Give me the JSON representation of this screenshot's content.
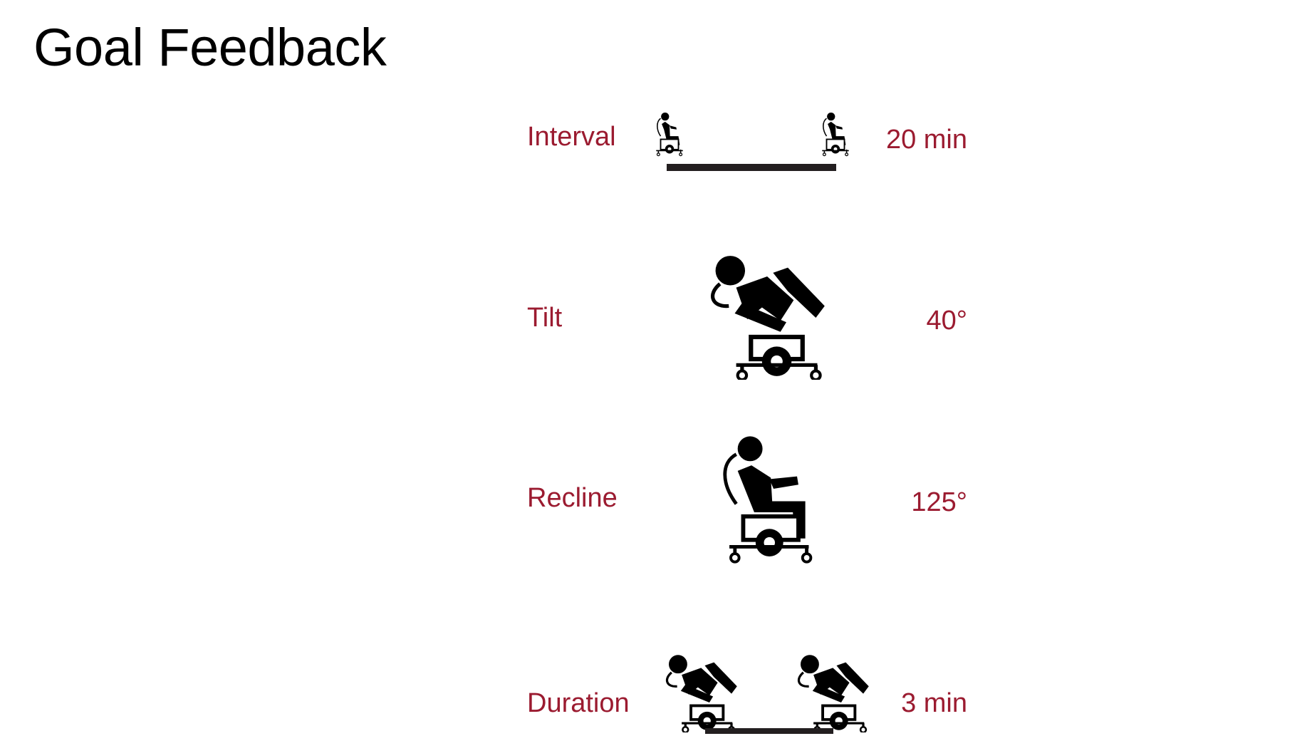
{
  "title": "Goal Feedback",
  "rows": [
    {
      "label": "Interval",
      "value": "20 min"
    },
    {
      "label": "Tilt",
      "value": "40°"
    },
    {
      "label": "Recline",
      "value": "125°"
    },
    {
      "label": "Duration",
      "value": "3 min"
    }
  ],
  "colors": {
    "accent": "#9b1b30",
    "icon": "#000000",
    "bar": "#231f20"
  }
}
